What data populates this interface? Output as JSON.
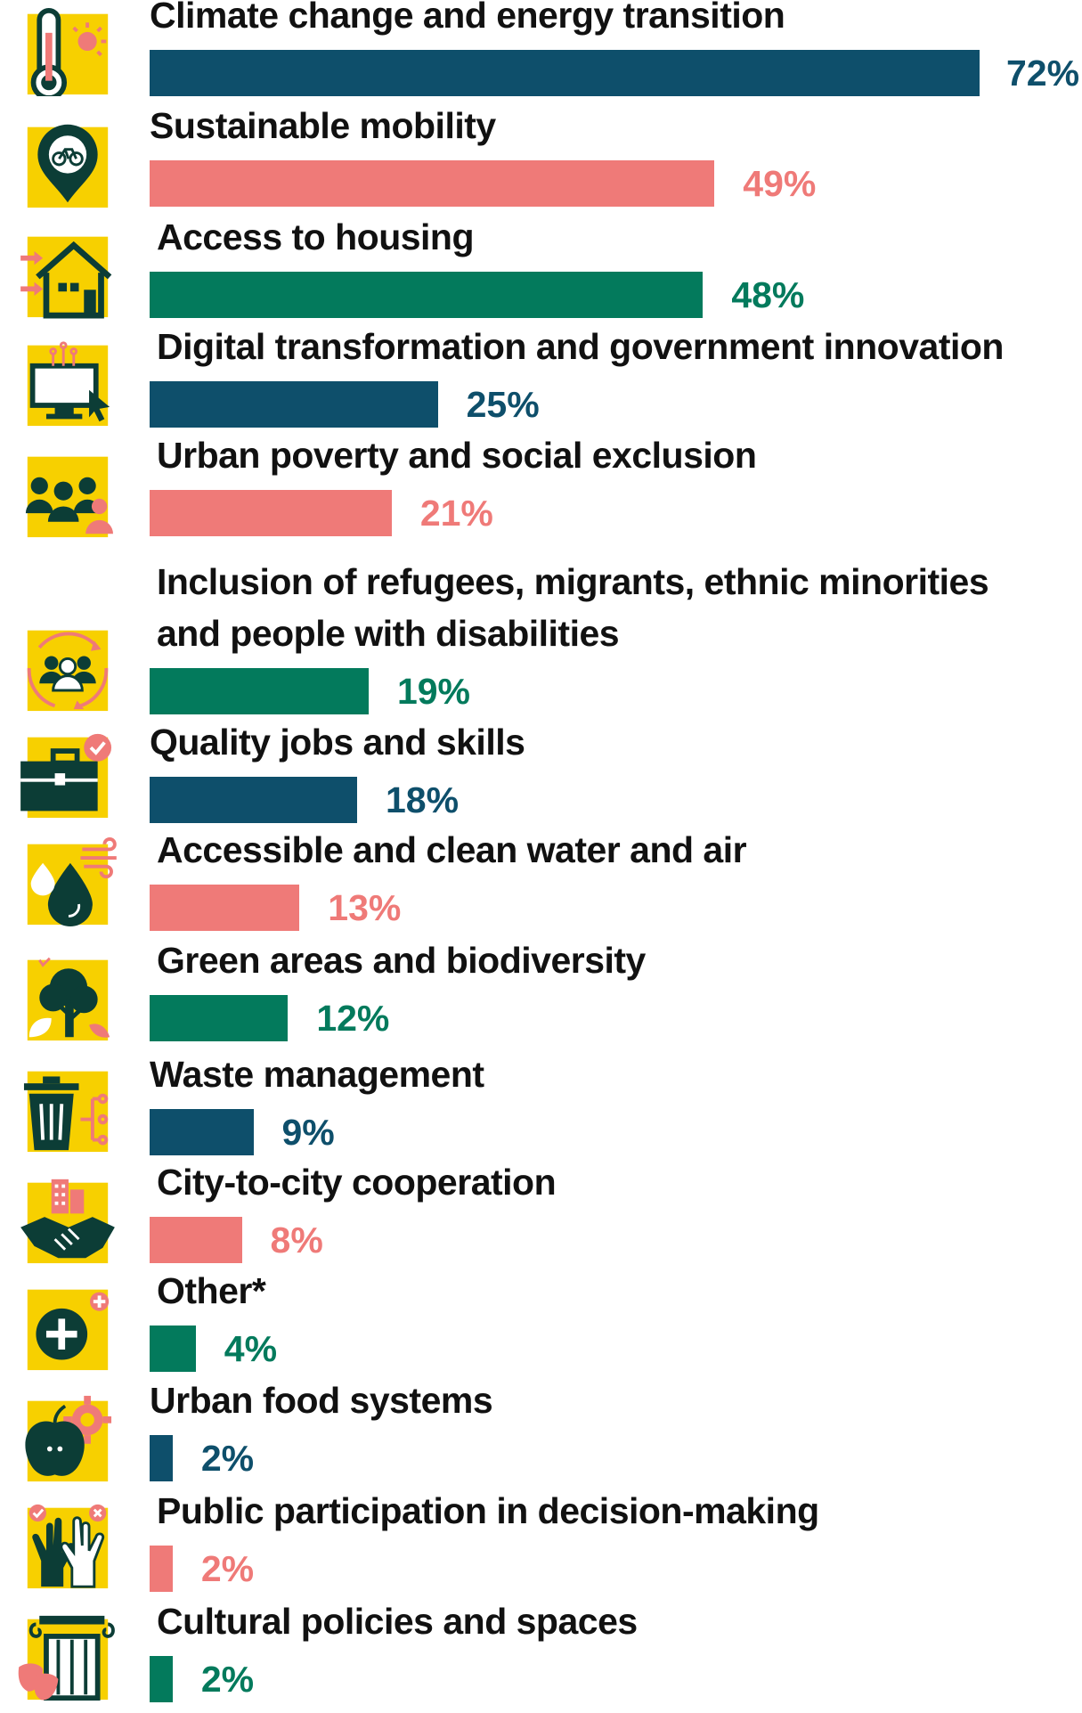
{
  "chart_data": {
    "type": "bar",
    "orientation": "horizontal",
    "title": "",
    "xlabel": "",
    "ylabel": "",
    "xlim": [
      0,
      72
    ],
    "value_suffix": "%",
    "palette": {
      "navy": "#0e4f6b",
      "salmon": "#ef7a78",
      "green": "#037a5c",
      "icon_bg": "#f7d000",
      "icon_fg": "#0c3d36",
      "icon_accent": "#ef7a78"
    },
    "items": [
      {
        "label": "Climate change and energy transition",
        "value": 72,
        "display": "72%",
        "color": "navy",
        "icon": "thermometer-sun-icon"
      },
      {
        "label": "Sustainable mobility",
        "value": 49,
        "display": "49%",
        "color": "salmon",
        "icon": "bicycle-pin-icon"
      },
      {
        "label": "Access to housing",
        "value": 48,
        "display": "48%",
        "color": "green",
        "icon": "house-icon"
      },
      {
        "label": "Digital transformation and government innovation",
        "value": 25,
        "display": "25%",
        "color": "navy",
        "icon": "computer-cursor-icon"
      },
      {
        "label": "Urban poverty and social exclusion",
        "value": 21,
        "display": "21%",
        "color": "salmon",
        "icon": "people-group-icon"
      },
      {
        "label": [
          "Inclusion of refugees, migrants, ethnic minorities",
          "and people with disabilities"
        ],
        "value": 19,
        "display": "19%",
        "color": "green",
        "icon": "people-cycle-icon"
      },
      {
        "label": "Quality jobs and skills",
        "value": 18,
        "display": "18%",
        "color": "navy",
        "icon": "briefcase-check-icon"
      },
      {
        "label": "Accessible and clean water and air",
        "value": 13,
        "display": "13%",
        "color": "salmon",
        "icon": "water-drop-wind-icon"
      },
      {
        "label": "Green areas and biodiversity",
        "value": 12,
        "display": "12%",
        "color": "green",
        "icon": "tree-leaf-icon"
      },
      {
        "label": "Waste management",
        "value": 9,
        "display": "9%",
        "color": "navy",
        "icon": "trash-bin-icon"
      },
      {
        "label": "City-to-city cooperation",
        "value": 8,
        "display": "8%",
        "color": "salmon",
        "icon": "handshake-city-icon"
      },
      {
        "label": "Other*",
        "value": 4,
        "display": "4%",
        "color": "green",
        "icon": "plus-circle-icon"
      },
      {
        "label": "Urban food systems",
        "value": 2,
        "display": "2%",
        "color": "navy",
        "icon": "apple-gear-icon"
      },
      {
        "label": "Public participation in decision-making",
        "value": 2,
        "display": "2%",
        "color": "salmon",
        "icon": "raised-hands-icon"
      },
      {
        "label": "Cultural policies and spaces",
        "value": 2,
        "display": "2%",
        "color": "green",
        "icon": "column-masks-icon"
      }
    ]
  }
}
